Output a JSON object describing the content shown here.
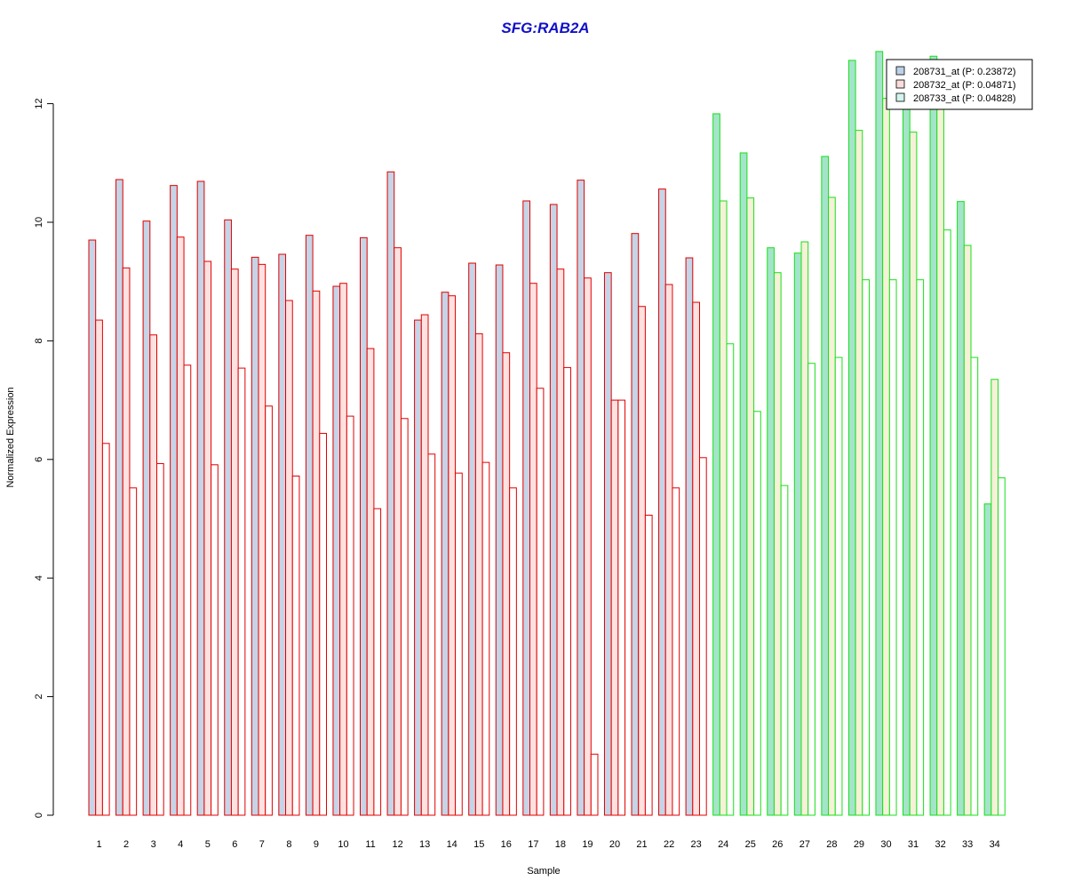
{
  "chart_data": {
    "type": "bar",
    "title": "SFG:RAB2A",
    "xlabel": "Sample",
    "ylabel": "Normalized Expression",
    "ylim": [
      0,
      12.9
    ],
    "yticks": [
      0,
      2,
      4,
      6,
      8,
      10,
      12
    ],
    "categories": [
      "1",
      "2",
      "3",
      "4",
      "5",
      "6",
      "7",
      "8",
      "9",
      "10",
      "11",
      "12",
      "13",
      "14",
      "15",
      "16",
      "17",
      "18",
      "19",
      "20",
      "21",
      "22",
      "23",
      "24",
      "25",
      "26",
      "27",
      "28",
      "29",
      "30",
      "31",
      "32",
      "33",
      "34"
    ],
    "group_boundary_after": 23,
    "series": [
      {
        "name": "208731_at (P: 0.23872)",
        "values": [
          9.7,
          10.72,
          10.02,
          10.62,
          10.69,
          10.04,
          9.41,
          9.46,
          9.78,
          8.92,
          9.74,
          10.85,
          8.35,
          8.82,
          9.31,
          9.28,
          10.36,
          10.3,
          10.71,
          9.15,
          9.81,
          10.56,
          9.4,
          11.83,
          11.17,
          9.57,
          9.48,
          11.11,
          12.73,
          12.88,
          12.09,
          12.8,
          10.35,
          5.25
        ]
      },
      {
        "name": "208732_at (P: 0.04871)",
        "values": [
          8.35,
          9.23,
          8.1,
          9.75,
          9.34,
          9.21,
          9.29,
          8.68,
          8.84,
          8.97,
          7.87,
          9.57,
          8.44,
          8.76,
          8.12,
          7.8,
          8.97,
          9.21,
          9.06,
          7.0,
          8.58,
          8.95,
          8.65,
          10.36,
          10.41,
          9.15,
          9.67,
          10.42,
          11.55,
          12.09,
          11.52,
          12.09,
          9.61,
          7.35
        ]
      },
      {
        "name": "208733_at (P: 0.04828)",
        "values": [
          6.27,
          5.52,
          5.93,
          7.59,
          5.91,
          7.54,
          6.9,
          5.72,
          6.44,
          6.73,
          5.17,
          6.69,
          6.09,
          5.77,
          5.95,
          5.52,
          7.2,
          7.55,
          1.03,
          7.0,
          5.06,
          5.52,
          6.03,
          7.95,
          6.81,
          5.56,
          7.62,
          7.72,
          9.03,
          9.03,
          9.03,
          9.87,
          7.72,
          5.69
        ]
      }
    ],
    "fills": [
      "#c5d4e6",
      "#fbe2e2",
      "#ffffff"
    ],
    "group_fills": {
      "red": [
        "#c5d4e6",
        "#ffe2e0",
        "#ffffff"
      ],
      "green": [
        "#a4e4ca",
        "#f6f1d8",
        "#ffffff"
      ]
    },
    "group_strokes": {
      "red": "#e00000",
      "green": "#18e018"
    },
    "legend_fills": [
      "#bcd2e8",
      "#fbdcdc",
      "#d4f4ec"
    ],
    "title_color": "#1010c8",
    "legend_position": "top-right",
    "grid": false
  }
}
